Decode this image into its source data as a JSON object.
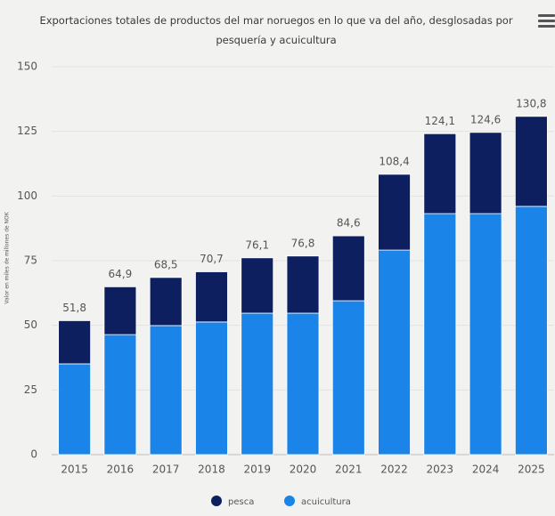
{
  "chart_data": {
    "type": "stacked_bar",
    "title": "Exportaciones totales de productos del mar noruegos en lo que va del año, desglosadas por pesquería y acuicultura",
    "y_label": "Valor en miles de millones de NOK",
    "categories": [
      "2015",
      "2016",
      "2017",
      "2018",
      "2019",
      "2020",
      "2021",
      "2022",
      "2023",
      "2024",
      "2025"
    ],
    "series": [
      {
        "name": "acuicultura",
        "color": "#1a84e8",
        "values": [
          35.1,
          46.4,
          49.9,
          51.3,
          54.7,
          54.7,
          59.5,
          79.1,
          93.2,
          93.2,
          96.0
        ]
      },
      {
        "name": "pesca",
        "color": "#0e1f5f",
        "values": [
          16.7,
          18.5,
          18.6,
          19.4,
          21.4,
          22.1,
          25.1,
          29.3,
          30.9,
          31.4,
          34.8
        ]
      }
    ],
    "totals": [
      51.8,
      64.9,
      68.5,
      70.7,
      76.1,
      76.8,
      84.6,
      108.4,
      124.1,
      124.6,
      130.8
    ],
    "total_labels": [
      "51,8",
      "64,9",
      "68,5",
      "70,7",
      "76,1",
      "76,8",
      "84,6",
      "108,4",
      "124,1",
      "124,6",
      "130,8"
    ],
    "ylim": [
      0,
      150
    ],
    "yticks": [
      0,
      25,
      50,
      75,
      100,
      125,
      150
    ],
    "grid": true
  }
}
